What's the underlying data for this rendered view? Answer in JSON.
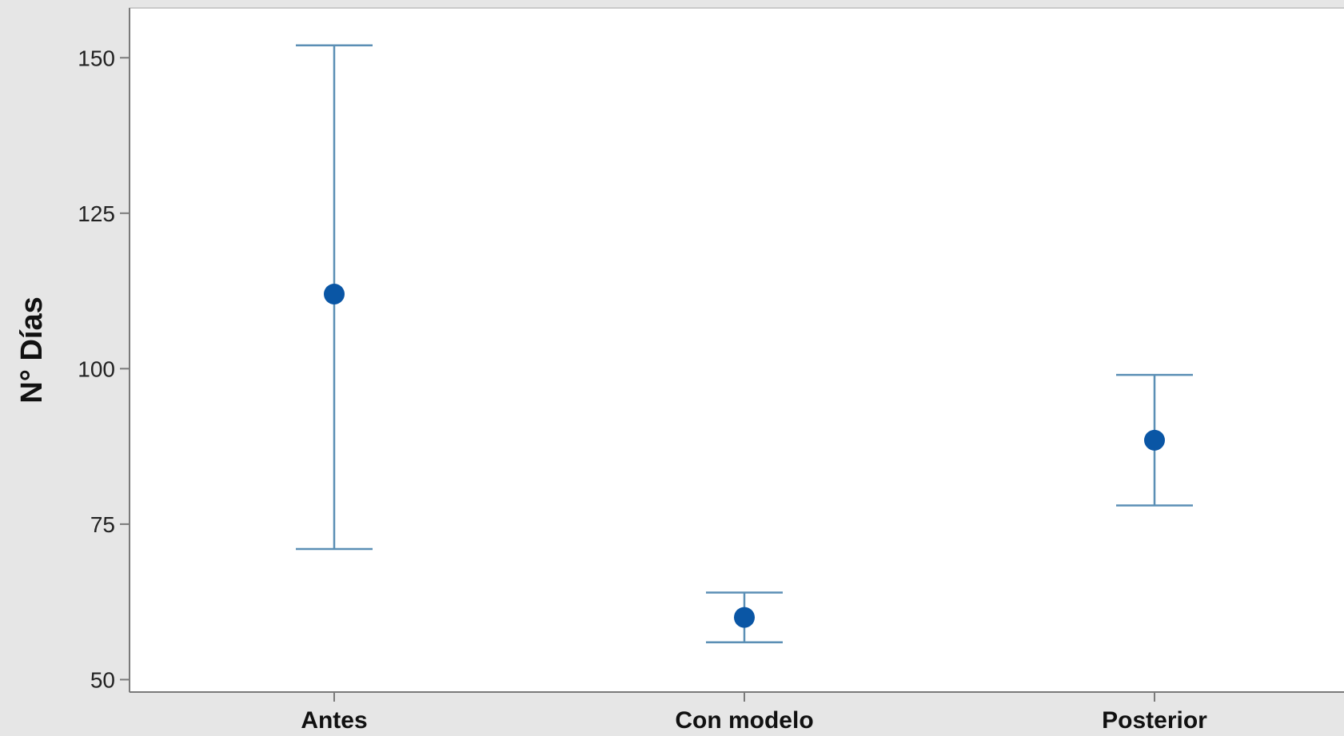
{
  "chart_data": {
    "type": "scatter",
    "subtype": "interval-plot",
    "title": "",
    "xlabel": "",
    "ylabel": "N° Días",
    "ylim": [
      48,
      158
    ],
    "yticks": [
      50,
      75,
      100,
      125,
      150
    ],
    "categories": [
      "Antes",
      "Con modelo",
      "Posterior"
    ],
    "series": [
      {
        "mean": [
          112,
          60,
          88.5
        ],
        "lower": [
          71,
          56,
          78
        ],
        "upper": [
          152,
          64,
          99
        ]
      }
    ],
    "grid": false,
    "legend": "none",
    "colors": {
      "point": "#0a56a5",
      "interval": "#5b8fb5",
      "axis": "#7a7a7a",
      "plot_bg": "#ffffff",
      "page_bg": "#e6e6e6"
    }
  }
}
